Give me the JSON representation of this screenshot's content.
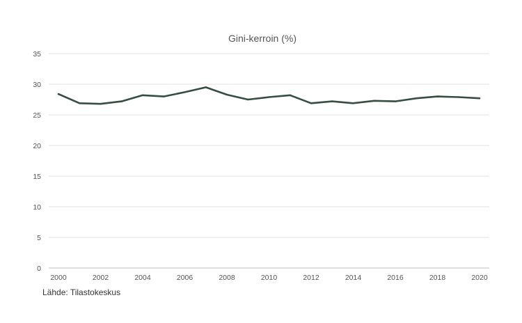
{
  "chart_data": {
    "type": "line",
    "title": "Gini-kerroin (%)",
    "xlabel": "",
    "ylabel": "",
    "ylim": [
      0,
      35
    ],
    "yticks": [
      0,
      5,
      10,
      15,
      20,
      25,
      30,
      35
    ],
    "xticks": [
      2000,
      2002,
      2004,
      2006,
      2008,
      2010,
      2012,
      2014,
      2016,
      2018,
      2020
    ],
    "grid": true,
    "legend": "none",
    "series": [
      {
        "name": "Gini-kerroin",
        "color": "#344e41",
        "x": [
          2000,
          2001,
          2002,
          2003,
          2004,
          2005,
          2006,
          2007,
          2008,
          2009,
          2010,
          2011,
          2012,
          2013,
          2014,
          2015,
          2016,
          2017,
          2018,
          2019,
          2020
        ],
        "values": [
          28.4,
          26.9,
          26.8,
          27.2,
          28.2,
          28.0,
          28.7,
          29.5,
          28.3,
          27.5,
          27.9,
          28.2,
          26.9,
          27.2,
          26.9,
          27.3,
          27.2,
          27.7,
          28.0,
          27.9,
          27.7
        ]
      }
    ]
  },
  "source": "Lähde: Tilastokeskus"
}
